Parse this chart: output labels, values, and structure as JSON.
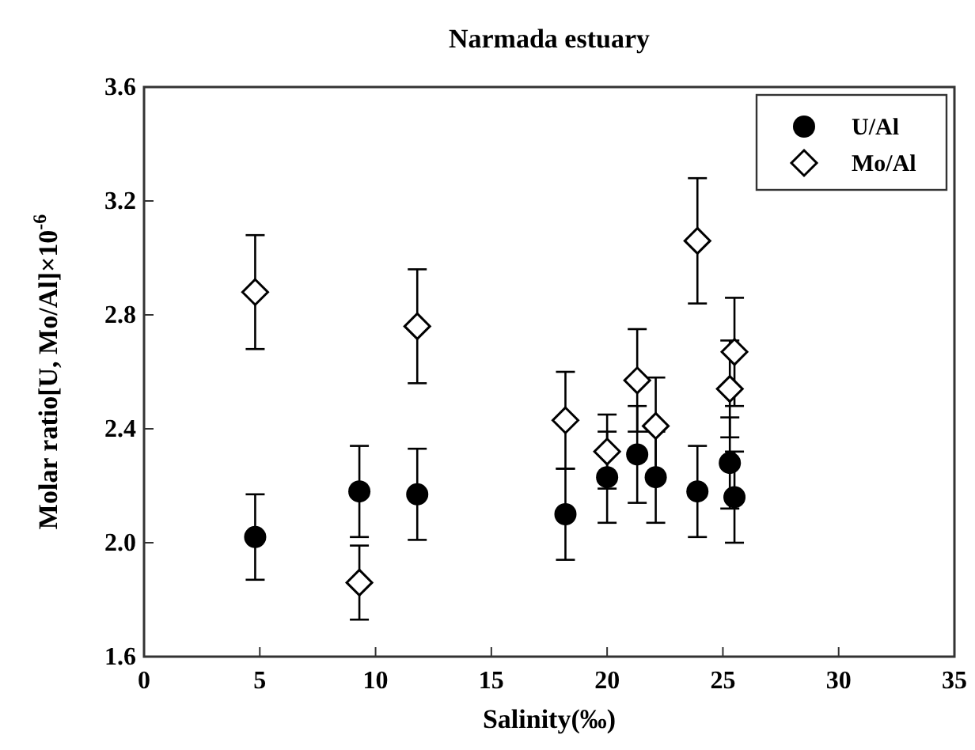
{
  "chart_data": {
    "type": "scatter",
    "title": "Narmada estuary",
    "xlabel": "Salinity(‰)",
    "ylabel": "Molar ratio[U, Mo/Al]×10$^{-6}$",
    "xlim": [
      0,
      35
    ],
    "xticks": [
      0,
      5,
      10,
      15,
      20,
      25,
      30,
      35
    ],
    "ylim": [
      1.6,
      3.6
    ],
    "yticks": [
      1.6,
      {
        "value": 2,
        "label": "2.0"
      },
      2.4,
      2.8,
      3.2,
      3.6
    ],
    "grid": false,
    "legend": "top right",
    "series": [
      {
        "name": "U/Al",
        "color": "#000000",
        "marker": "circle",
        "x": [
          4.8,
          9.3,
          11.8,
          18.2,
          20.0,
          21.3,
          22.1,
          23.9,
          25.3,
          25.5
        ],
        "values": [
          2.02,
          2.18,
          2.17,
          2.1,
          2.23,
          2.31,
          2.23,
          2.18,
          2.28,
          2.16
        ],
        "errors": [
          0.15,
          0.16,
          0.16,
          0.16,
          0.16,
          0.17,
          0.16,
          0.16,
          0.16,
          0.16
        ]
      },
      {
        "name": "Mo/Al",
        "color": "#000000",
        "marker": "diamond",
        "x": [
          4.8,
          9.3,
          11.8,
          18.2,
          20.0,
          21.3,
          22.1,
          23.9,
          25.3,
          25.5
        ],
        "values": [
          2.88,
          1.86,
          2.76,
          2.43,
          2.32,
          2.57,
          2.41,
          3.06,
          2.54,
          2.67
        ],
        "errors": [
          0.2,
          0.13,
          0.2,
          0.17,
          0.13,
          0.18,
          0.17,
          0.22,
          0.17,
          0.19
        ]
      }
    ]
  }
}
